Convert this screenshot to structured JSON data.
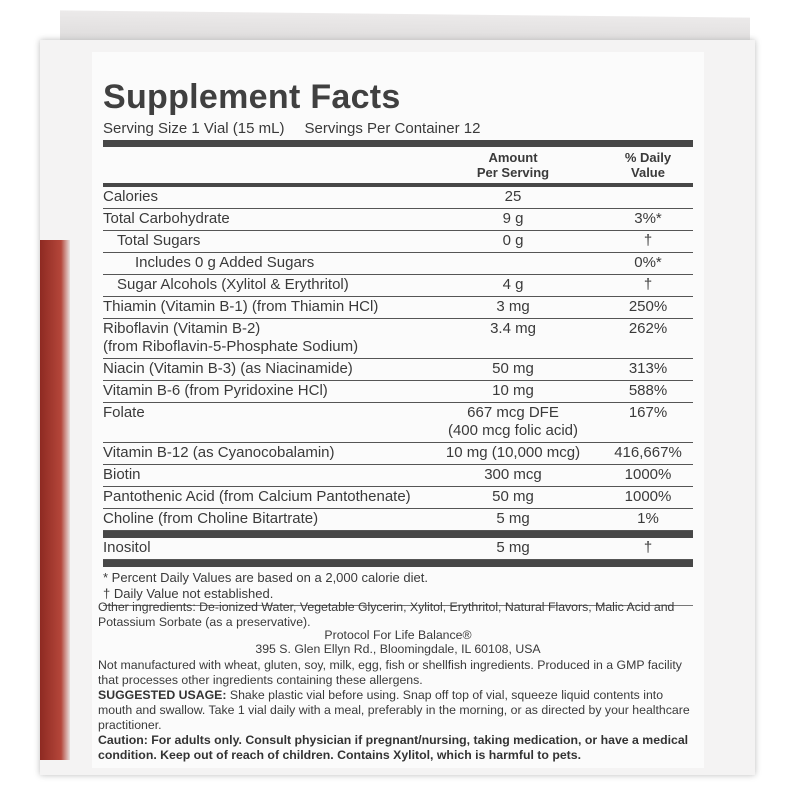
{
  "title": "Supplement Facts",
  "serving_size": "Serving Size 1 Vial (15 mL)",
  "servings_per_container": "Servings Per Container 12",
  "header": {
    "amount": [
      "Amount",
      "Per Serving"
    ],
    "dv": [
      "% Daily",
      "Value"
    ]
  },
  "rows": [
    {
      "name": [
        "Calories"
      ],
      "amount": [
        "25"
      ],
      "dv": ""
    },
    {
      "name": [
        "Total Carbohydrate"
      ],
      "amount": [
        "9 g"
      ],
      "dv": "3%*"
    },
    {
      "name": [
        "Total Sugars"
      ],
      "amount": [
        "0 g"
      ],
      "dv": "†"
    },
    {
      "name": [
        "Includes 0 g Added Sugars"
      ],
      "amount": [
        ""
      ],
      "dv": "0%*"
    },
    {
      "name": [
        "Sugar Alcohols (Xylitol & Erythritol)"
      ],
      "amount": [
        "4 g"
      ],
      "dv": "†"
    },
    {
      "name": [
        "Thiamin (Vitamin B-1) (from Thiamin HCl)"
      ],
      "amount": [
        "3 mg"
      ],
      "dv": "250%"
    },
    {
      "name": [
        "Riboflavin (Vitamin B-2)",
        "(from Riboflavin-5-Phosphate Sodium)"
      ],
      "amount": [
        "3.4 mg"
      ],
      "dv": "262%"
    },
    {
      "name": [
        "Niacin (Vitamin B-3) (as Niacinamide)"
      ],
      "amount": [
        "50 mg"
      ],
      "dv": "313%"
    },
    {
      "name": [
        "Vitamin B-6 (from Pyridoxine HCl)"
      ],
      "amount": [
        "10 mg"
      ],
      "dv": "588%"
    },
    {
      "name": [
        "Folate"
      ],
      "amount": [
        "667 mcg DFE",
        "(400 mcg folic acid)"
      ],
      "dv": "167%"
    },
    {
      "name": [
        "Vitamin B-12 (as Cyanocobalamin)"
      ],
      "amount": [
        "10 mg (10,000 mcg)"
      ],
      "dv": "416,667%"
    },
    {
      "name": [
        "Biotin"
      ],
      "amount": [
        "300 mcg"
      ],
      "dv": "1000%"
    },
    {
      "name": [
        "Pantothenic Acid (from Calcium Pantothenate)"
      ],
      "amount": [
        "50 mg"
      ],
      "dv": "1000%"
    },
    {
      "name": [
        "Choline (from Choline Bitartrate)"
      ],
      "amount": [
        "5 mg"
      ],
      "dv": "1%"
    },
    {
      "name": [
        "Inositol"
      ],
      "amount": [
        "5 mg"
      ],
      "dv": "†"
    }
  ],
  "footnotes": [
    "* Percent Daily Values are based on a 2,000 calorie diet.",
    "† Daily Value not established."
  ],
  "other_ingredients": "Other ingredients: De-ionized Water, Vegetable Glycerin, Xylitol, Erythritol, Natural Flavors, Malic Acid and Potassium Sorbate (as a preservative).",
  "manufacturer": "Protocol For Life Balance®",
  "address": "395 S. Glen Ellyn Rd., Bloomingdale, IL 60108, USA",
  "allergen_statement": "Not manufactured with wheat, gluten, soy, milk, egg, fish or shellfish ingredients. Produced in a GMP facility that processes other ingredients containing these allergens.",
  "suggested_usage": {
    "label": "SUGGESTED USAGE:",
    "text": "Shake plastic vial before using. Snap off top of vial, squeeze liquid contents into mouth and swallow. Take 1 vial daily with a meal, preferably in the morning, or as directed by your healthcare practitioner."
  },
  "caution": "Caution: For adults only. Consult physician if pregnant/nursing, taking medication, or have a medical condition. Keep out of reach of children. Contains Xylitol, which is harmful to pets."
}
